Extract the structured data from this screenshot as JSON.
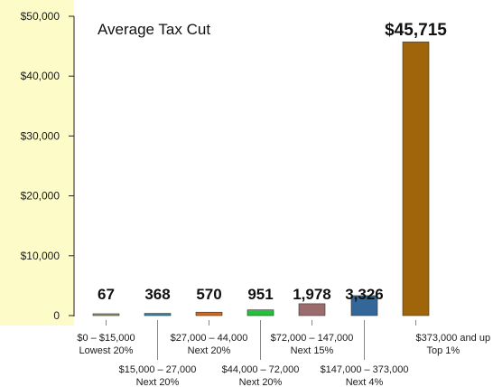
{
  "chart_data": {
    "type": "bar",
    "title": "Average Tax Cut",
    "xlabel": "",
    "ylabel": "",
    "ylim": [
      0,
      50000
    ],
    "y_ticks": [
      "0",
      "$10,000",
      "$20,000",
      "$30,000",
      "$40,000",
      "$50,000"
    ],
    "y_tick_values": [
      0,
      10000,
      20000,
      30000,
      40000,
      50000
    ],
    "categories": [
      {
        "range": "$0 – $15,000",
        "group": "Lowest 20%"
      },
      {
        "range": "$15,000 – 27,000",
        "group": "Next 20%"
      },
      {
        "range": "$27,000 – 44,000",
        "group": "Next 20%"
      },
      {
        "range": "$44,000 – 72,000",
        "group": "Next 20%"
      },
      {
        "range": "$72,000 – 147,000",
        "group": "Next 15%"
      },
      {
        "range": "$147,000 – 373,000",
        "group": "Next 4%"
      },
      {
        "range": "$373,000 and up",
        "group": "Top 1%"
      }
    ],
    "values": [
      67,
      368,
      570,
      951,
      1978,
      3326,
      45715
    ],
    "value_labels": [
      "67",
      "368",
      "570",
      "951",
      "1,978",
      "3,326",
      "$45,715"
    ],
    "colors": [
      "#9a9a6a",
      "#2d8aa6",
      "#d2691e",
      "#22c23a",
      "#9c6b6b",
      "#336699",
      "#a0650a"
    ],
    "axis_band_color": "#fdfcc8",
    "grid": false,
    "legend": "none"
  }
}
